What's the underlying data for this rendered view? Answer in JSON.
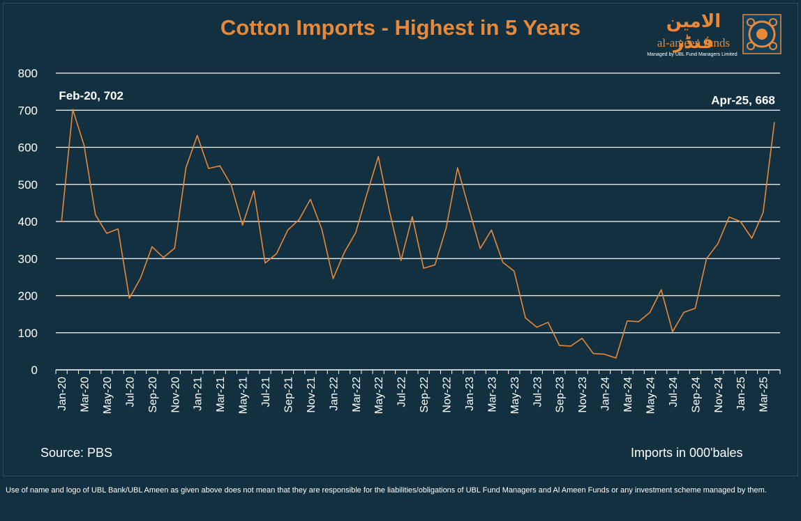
{
  "title": "Cotton Imports - Highest in 5 Years",
  "logo": {
    "urdu": "الامین فنڈز",
    "name": "al-ameen funds",
    "sub": "Managed by UBL Fund Managers Limited"
  },
  "source": "Source: PBS",
  "units": "Imports in 000'bales",
  "disclaimer": "Use of name and logo of UBL Bank/UBL Ameen as given above does not mean that they are responsible for the liabilities/obligations of UBL Fund Managers and Al Ameen Funds or any investment scheme managed by them.",
  "colors": {
    "background": "#12303f",
    "line": "#e8893a",
    "grid": "#ffffff",
    "title": "#e8893a"
  },
  "chart_data": {
    "type": "line",
    "title": "Cotton Imports - Highest in 5 Years",
    "ylim": [
      0,
      800
    ],
    "yticks": [
      0,
      100,
      200,
      300,
      400,
      500,
      600,
      700,
      800
    ],
    "grid": true,
    "x": [
      "Jan-20",
      "Feb-20",
      "Mar-20",
      "Apr-20",
      "May-20",
      "Jun-20",
      "Jul-20",
      "Aug-20",
      "Sep-20",
      "Oct-20",
      "Nov-20",
      "Dec-20",
      "Jan-21",
      "Feb-21",
      "Mar-21",
      "Apr-21",
      "May-21",
      "Jun-21",
      "Jul-21",
      "Aug-21",
      "Sep-21",
      "Oct-21",
      "Nov-21",
      "Dec-21",
      "Jan-22",
      "Feb-22",
      "Mar-22",
      "Apr-22",
      "May-22",
      "Jun-22",
      "Jul-22",
      "Aug-22",
      "Sep-22",
      "Oct-22",
      "Nov-22",
      "Dec-22",
      "Jan-23",
      "Feb-23",
      "Mar-23",
      "Apr-23",
      "May-23",
      "Jun-23",
      "Jul-23",
      "Aug-23",
      "Sep-23",
      "Oct-23",
      "Nov-23",
      "Dec-23",
      "Jan-24",
      "Feb-24",
      "Mar-24",
      "Apr-24",
      "May-24",
      "Jun-24",
      "Jul-24",
      "Aug-24",
      "Sep-24",
      "Oct-24",
      "Nov-24",
      "Dec-24",
      "Jan-25",
      "Feb-25",
      "Mar-25",
      "Apr-25"
    ],
    "xtick_labels": [
      "Jan-20",
      "Mar-20",
      "May-20",
      "Jul-20",
      "Sep-20",
      "Nov-20",
      "Jan-21",
      "Mar-21",
      "May-21",
      "Jul-21",
      "Sep-21",
      "Nov-21",
      "Jan-22",
      "Mar-22",
      "May-22",
      "Jul-22",
      "Sep-22",
      "Nov-22",
      "Jan-23",
      "Mar-23",
      "May-23",
      "Jul-23",
      "Sep-23",
      "Nov-23",
      "Jan-24",
      "Mar-24",
      "May-24",
      "Jul-24",
      "Sep-24",
      "Nov-24",
      "Jan-25",
      "Mar-25"
    ],
    "series": [
      {
        "values": [
          398,
          702,
          605,
          418,
          368,
          380,
          193,
          248,
          332,
          303,
          328,
          545,
          632,
          543,
          550,
          498,
          390,
          483,
          288,
          313,
          377,
          405,
          460,
          380,
          246,
          317,
          370,
          475,
          575,
          425,
          295,
          413,
          274,
          283,
          383,
          545,
          435,
          327,
          377,
          290,
          266,
          140,
          115,
          128,
          66,
          64,
          85,
          44,
          42,
          32,
          132,
          130,
          155,
          216,
          103,
          155,
          166,
          300,
          340,
          412,
          400,
          355,
          424,
          668
        ]
      }
    ],
    "annotations": [
      {
        "x": "Feb-20",
        "y": 702,
        "text": "Feb-20, 702"
      },
      {
        "x": "Apr-25",
        "y": 668,
        "text": "Apr-25, 668"
      }
    ]
  }
}
